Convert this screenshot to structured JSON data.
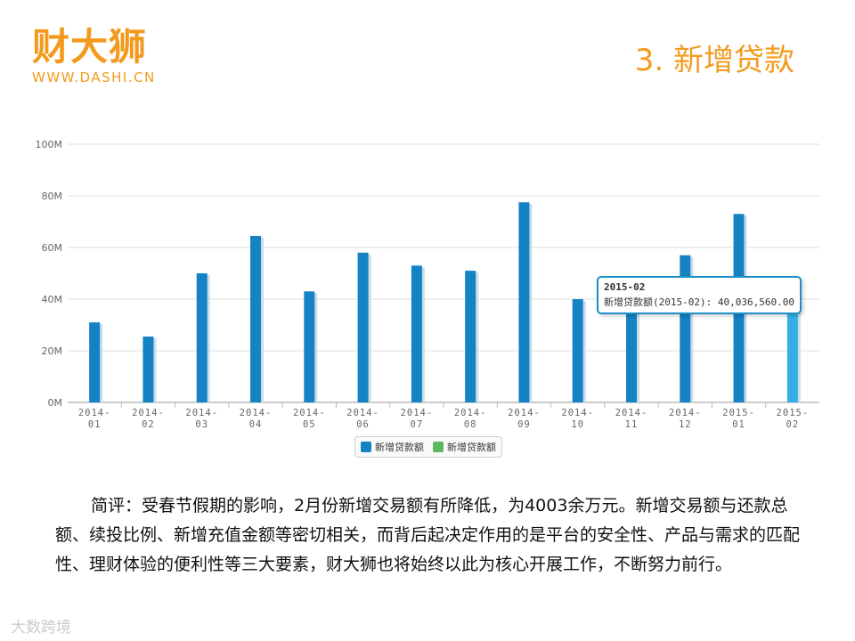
{
  "header": {
    "logo_text": "财大狮",
    "logo_url": "WWW.DASHI.CN",
    "slide_title": "3. 新增贷款"
  },
  "colors": {
    "brand": "#f39a1e",
    "bar": "#1582c4",
    "bar_highlight": "#35aee6",
    "legend_green": "#5cb85c"
  },
  "chart_data": {
    "type": "bar",
    "categories": [
      "2014-01",
      "2014-02",
      "2014-03",
      "2014-04",
      "2014-05",
      "2014-06",
      "2014-07",
      "2014-08",
      "2014-09",
      "2014-10",
      "2014-11",
      "2014-12",
      "2015-01",
      "2015-02"
    ],
    "series": [
      {
        "name": "新增贷款额",
        "values": [
          31,
          25.5,
          50,
          64.5,
          43,
          58,
          53,
          51,
          77.5,
          40,
          38,
          57,
          73,
          40.04
        ]
      }
    ],
    "ylim": [
      0,
      100
    ],
    "yticks": [
      "0M",
      "20M",
      "40M",
      "60M",
      "80M",
      "100M"
    ],
    "ytick_values": [
      0,
      20,
      40,
      60,
      80,
      100
    ],
    "grid": true,
    "legend": [
      "新增贷款额",
      "新增贷款额"
    ],
    "legend_position": "bottom-center",
    "highlighted_index": 13
  },
  "tooltip": {
    "title": "2015-02",
    "text": "新增贷款额(2015-02): 40,036,560.00"
  },
  "comment": "简评：受春节假期的影响，2月份新增交易额有所降低，为4003余万元。新增交易额与还款总额、续投比例、新增充值金额等密切相关，而背后起决定作用的是平台的安全性、产品与需求的匹配性、理财体验的便利性等三大要素，财大狮也将始终以此为核心开展工作，不断努力前行。",
  "watermark": "大数跨境"
}
